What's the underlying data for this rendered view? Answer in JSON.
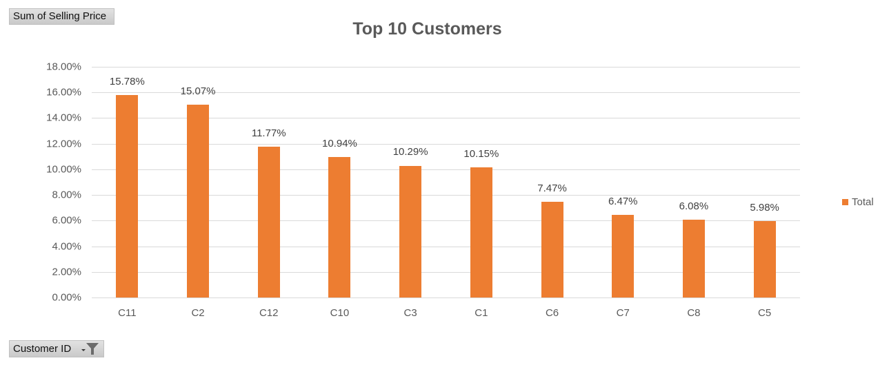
{
  "pivot": {
    "value_field_label": "Sum of Selling Price",
    "axis_field_label": "Customer ID",
    "axis_field_icon": "filter-icon"
  },
  "colors": {
    "bar": "#ed7d31",
    "gridline": "#d9d9d9",
    "title": "#595959",
    "axis_text": "#595959"
  },
  "chart_data": {
    "type": "bar",
    "title": "Top 10  Customers",
    "xlabel": "",
    "ylabel": "",
    "categories": [
      "C11",
      "C2",
      "C12",
      "C10",
      "C3",
      "C1",
      "C6",
      "C7",
      "C8",
      "C5"
    ],
    "series": [
      {
        "name": "Total",
        "values": [
          15.78,
          15.07,
          11.77,
          10.94,
          10.29,
          10.15,
          7.47,
          6.47,
          6.08,
          5.98
        ],
        "labels": [
          "15.78%",
          "15.07%",
          "11.77%",
          "10.94%",
          "10.29%",
          "10.15%",
          "7.47%",
          "6.47%",
          "6.08%",
          "5.98%"
        ]
      }
    ],
    "ylim": [
      0,
      18
    ],
    "yticks": [
      "0.00%",
      "2.00%",
      "4.00%",
      "6.00%",
      "8.00%",
      "10.00%",
      "12.00%",
      "14.00%",
      "16.00%",
      "18.00%"
    ],
    "grid": true,
    "legend_position": "right",
    "legend": [
      "Total"
    ]
  }
}
